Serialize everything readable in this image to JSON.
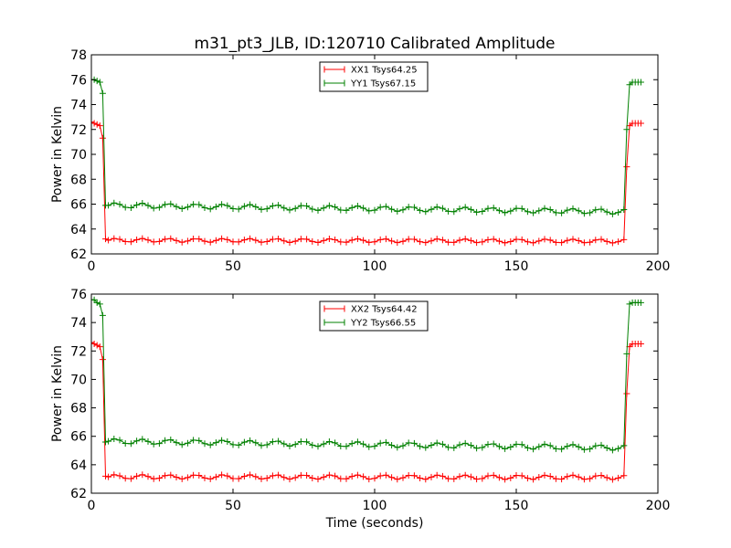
{
  "chart_data": {
    "title": "m31_pt3_JLB, ID:120710 Calibrated Amplitude",
    "xlabel": "Time (seconds)",
    "colors": {
      "XX": "#ff0000",
      "YY": "#008000"
    },
    "panels": [
      {
        "type": "line",
        "xlim": [
          0,
          200
        ],
        "ylim": [
          62,
          78
        ],
        "xticks": [
          0,
          50,
          100,
          150,
          200
        ],
        "yticks": [
          62,
          64,
          66,
          68,
          70,
          72,
          74,
          76,
          78
        ],
        "ylabel": "Power in Kelvin",
        "grid": false,
        "legend_position": "top-center",
        "series": [
          {
            "name": "XX1 Tsys64.25",
            "color": "#ff0000",
            "start": [
              [
                0,
                72.6
              ],
              [
                1,
                72.5
              ],
              [
                2,
                72.4
              ],
              [
                3,
                72.3
              ],
              [
                4,
                71.3
              ],
              [
                5,
                63.2
              ]
            ],
            "mid": {
              "from": 6,
              "to": 188,
              "step": 2,
              "base": 63.1,
              "amp": 0.15,
              "period": 9.5,
              "drift": -0.0004
            },
            "end": [
              [
                189,
                69.0
              ],
              [
                190,
                72.3
              ],
              [
                191,
                72.5
              ],
              [
                192,
                72.5
              ],
              [
                193,
                72.5
              ],
              [
                194,
                72.5
              ]
            ]
          },
          {
            "name": "YY1 Tsys67.15",
            "color": "#008000",
            "start": [
              [
                0,
                76.0
              ],
              [
                1,
                76.0
              ],
              [
                2,
                75.9
              ],
              [
                3,
                75.8
              ],
              [
                4,
                74.9
              ],
              [
                5,
                65.9
              ]
            ],
            "mid": {
              "from": 6,
              "to": 188,
              "step": 2,
              "base": 65.9,
              "amp": 0.2,
              "period": 9.5,
              "drift": -0.0028
            },
            "end": [
              [
                189,
                72.0
              ],
              [
                190,
                75.6
              ],
              [
                191,
                75.8
              ],
              [
                192,
                75.8
              ],
              [
                193,
                75.8
              ],
              [
                194,
                75.8
              ]
            ]
          }
        ]
      },
      {
        "type": "line",
        "xlim": [
          0,
          200
        ],
        "ylim": [
          62,
          76
        ],
        "xticks": [
          0,
          50,
          100,
          150,
          200
        ],
        "yticks": [
          62,
          64,
          66,
          68,
          70,
          72,
          74,
          76
        ],
        "ylabel": "Power in Kelvin",
        "xlabel": "Time (seconds)",
        "grid": false,
        "legend_position": "top-center",
        "series": [
          {
            "name": "XX2 Tsys64.42",
            "color": "#ff0000",
            "start": [
              [
                0,
                72.6
              ],
              [
                1,
                72.5
              ],
              [
                2,
                72.4
              ],
              [
                3,
                72.3
              ],
              [
                4,
                71.4
              ],
              [
                5,
                63.2
              ]
            ],
            "mid": {
              "from": 6,
              "to": 188,
              "step": 2,
              "base": 63.15,
              "amp": 0.15,
              "period": 9.5,
              "drift": -0.0002
            },
            "end": [
              [
                189,
                69.0
              ],
              [
                190,
                72.3
              ],
              [
                191,
                72.5
              ],
              [
                192,
                72.5
              ],
              [
                193,
                72.5
              ],
              [
                194,
                72.5
              ]
            ]
          },
          {
            "name": "YY2 Tsys66.55",
            "color": "#008000",
            "start": [
              [
                0,
                75.6
              ],
              [
                1,
                75.6
              ],
              [
                2,
                75.4
              ],
              [
                3,
                75.3
              ],
              [
                4,
                74.5
              ],
              [
                5,
                65.6
              ]
            ],
            "mid": {
              "from": 6,
              "to": 188,
              "step": 2,
              "base": 65.65,
              "amp": 0.18,
              "period": 9.5,
              "drift": -0.0025
            },
            "end": [
              [
                189,
                71.8
              ],
              [
                190,
                75.3
              ],
              [
                191,
                75.4
              ],
              [
                192,
                75.4
              ],
              [
                193,
                75.4
              ],
              [
                194,
                75.4
              ]
            ]
          }
        ]
      }
    ]
  }
}
